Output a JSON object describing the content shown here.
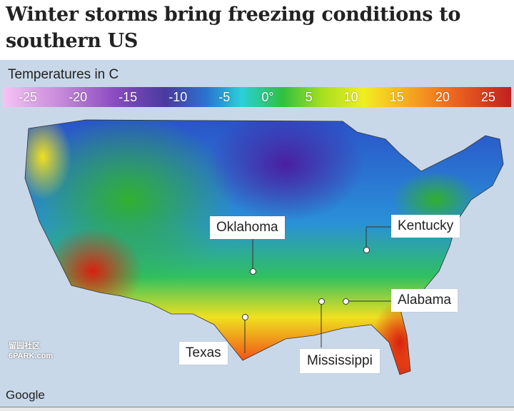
{
  "title": "Winter storms bring freezing conditions to southern US",
  "legend": {
    "title": "Temperatures in C",
    "ticks": [
      "-25",
      "-20",
      "-15",
      "-10",
      "-5",
      "0°",
      "5",
      "10",
      "15",
      "20",
      "25"
    ]
  },
  "places": [
    {
      "name": "Oklahoma"
    },
    {
      "name": "Kentucky"
    },
    {
      "name": "Alabama"
    },
    {
      "name": "Texas"
    },
    {
      "name": "Mississippi"
    }
  ],
  "attribution": "Google",
  "watermark": "留园社区 6PARK.com",
  "colors": {
    "cold": "#4a2fa0",
    "mild": "#30c040",
    "warm": "#d01818",
    "water": "#c9d8e8"
  }
}
